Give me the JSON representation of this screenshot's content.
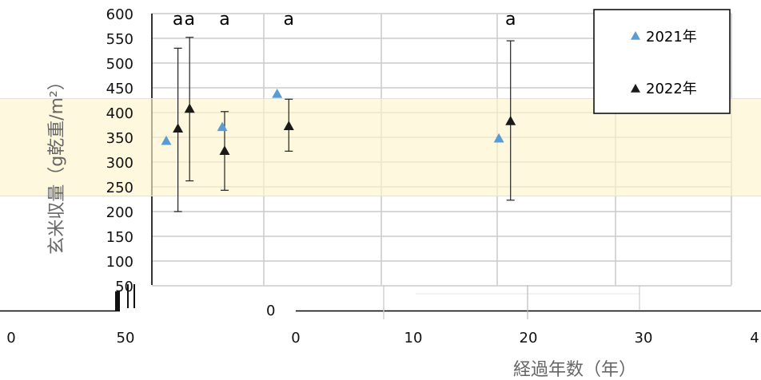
{
  "chart_data": {
    "type": "scatter",
    "xlabel": "経過年数（年）",
    "ylabel": "玄米収量（g乾重/m²）",
    "ylim": [
      0,
      600
    ],
    "xlim": [
      -2.2,
      38
    ],
    "y_ticks": [
      "600",
      "550",
      "500",
      "450",
      "400",
      "350",
      "300",
      "250",
      "200",
      "150",
      "100",
      "50"
    ],
    "x_ticks": [
      "0",
      "50",
      "0",
      "10",
      "20",
      "30",
      "4"
    ],
    "grid": true,
    "legend_placement": "top-right",
    "series": [
      {
        "name": "2021年",
        "color": "#5b9bd5",
        "points": [
          {
            "x": 0.0,
            "y": 343
          },
          {
            "x": 4.8,
            "y": 371
          },
          {
            "x": 9.5,
            "y": 438
          },
          {
            "x": 28.5,
            "y": 348
          }
        ]
      },
      {
        "name": "2022年",
        "color": "#1a1a1a",
        "points": [
          {
            "x": 1.0,
            "y": 368,
            "err": [
              200,
              530
            ]
          },
          {
            "x": 2.0,
            "y": 408,
            "err": [
              262,
              552
            ]
          },
          {
            "x": 5.0,
            "y": 323,
            "err": [
              243,
              402
            ]
          },
          {
            "x": 10.5,
            "y": 373,
            "err": [
              322,
              427
            ]
          },
          {
            "x": 29.5,
            "y": 383,
            "err": [
              223,
              545
            ]
          }
        ]
      }
    ],
    "annotations": [
      {
        "text": "a",
        "x": 1.0
      },
      {
        "text": "a",
        "x": 2.0
      },
      {
        "text": "a",
        "x": 5.0
      },
      {
        "text": "a",
        "x": 10.5
      },
      {
        "text": "a",
        "x": 29.5
      }
    ]
  }
}
